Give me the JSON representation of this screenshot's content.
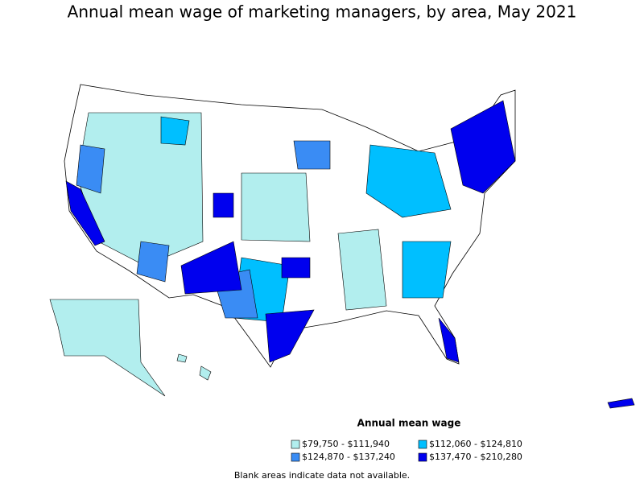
{
  "title": "Annual mean wage of marketing managers, by area, May 2021",
  "legend": {
    "title": "Annual mean wage",
    "items": [
      {
        "label": "$79,750 - $111,940",
        "color": "#b2eeee"
      },
      {
        "label": "$112,060 - $124,810",
        "color": "#00bfff"
      },
      {
        "label": "$124,870 - $137,240",
        "color": "#3a8cf4"
      },
      {
        "label": "$137,470 - $210,280",
        "color": "#0000ee"
      }
    ]
  },
  "note": "Blank areas indicate data not available."
}
